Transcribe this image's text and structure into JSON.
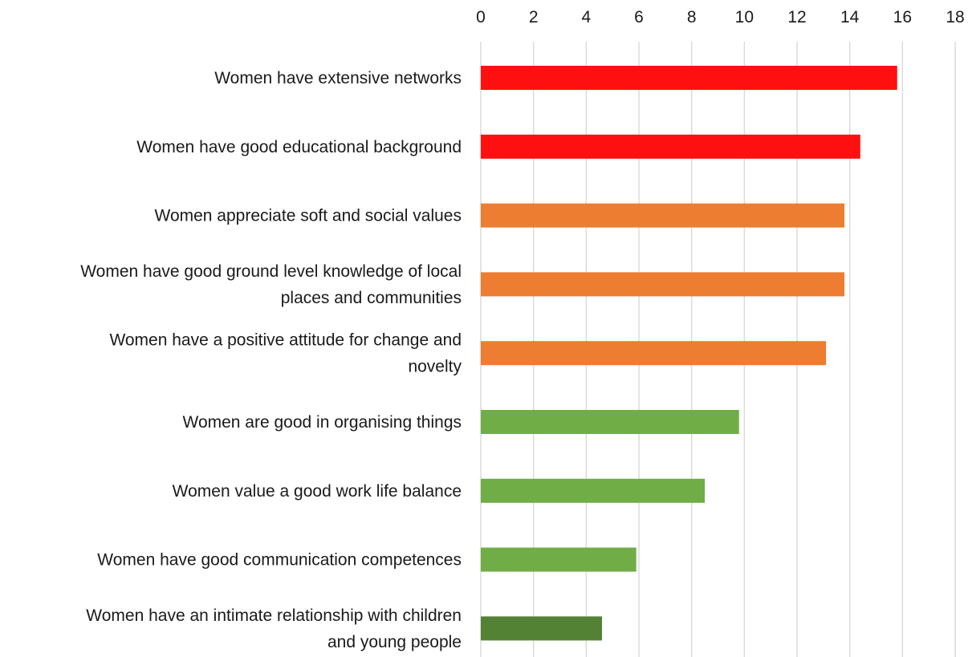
{
  "chart_data": {
    "type": "bar",
    "orientation": "horizontal",
    "title": "",
    "xlabel": "",
    "ylabel": "",
    "xlim": [
      0,
      18
    ],
    "x_ticks": [
      0,
      2,
      4,
      6,
      8,
      10,
      12,
      14,
      16,
      18
    ],
    "x_axis_position": "top",
    "grid": true,
    "legend": "none",
    "categories": [
      [
        "Women have extensive networks"
      ],
      [
        "Women have good educational background"
      ],
      [
        "Women appreciate soft and social values"
      ],
      [
        "Women have good ground level knowledge of local",
        "places and communities"
      ],
      [
        "Women have a positive attitude for change and",
        "novelty"
      ],
      [
        "Women are good in organising things"
      ],
      [
        "Women value a good work life balance"
      ],
      [
        "Women have good communication competences"
      ],
      [
        "Women have an intimate relationship with children",
        "and young people"
      ]
    ],
    "values": [
      15.8,
      14.4,
      13.8,
      13.8,
      13.1,
      9.8,
      8.5,
      5.9,
      4.6
    ],
    "bar_colors": [
      "#ff1010",
      "#ff1010",
      "#ed7d31",
      "#ed7d31",
      "#ed7d31",
      "#70ad47",
      "#70ad47",
      "#70ad47",
      "#548235"
    ]
  }
}
